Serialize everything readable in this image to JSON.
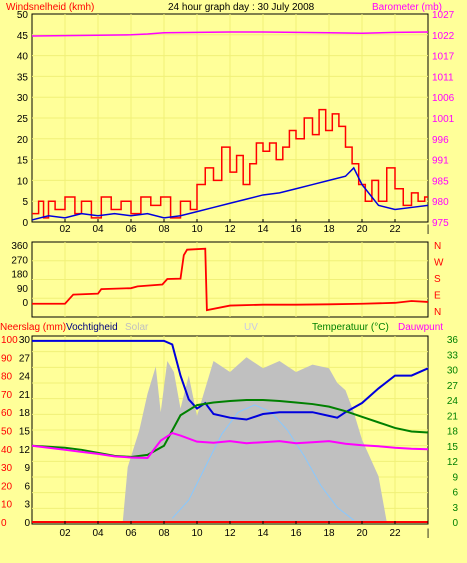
{
  "page": {
    "background": "#ffff99",
    "frame_color": "#000000",
    "grid_color": "#f0f078"
  },
  "chart_data": [
    {
      "id": "wind-pressure",
      "type": "line",
      "title": "24 hour graph day : 30 July 2008",
      "ylabel_left": "Windsnelheid (kmh)",
      "ylabel_right": "Barometer (mb)",
      "left_ticks": [
        "50",
        "45",
        "40",
        "35",
        "30",
        "25",
        "20",
        "15",
        "10",
        "5",
        "0"
      ],
      "right_ticks": [
        "1027",
        "1022",
        "1017",
        "1011",
        "1006",
        "1001",
        "996",
        "991",
        "985",
        "980",
        "975"
      ],
      "ylim_left": [
        0,
        50
      ],
      "ylim_right": [
        975,
        1027
      ],
      "xlim": [
        0,
        24
      ],
      "x_ticks": [
        "02",
        "04",
        "06",
        "08",
        "10",
        "12",
        "14",
        "16",
        "18",
        "20",
        "22",
        "|"
      ],
      "series": [
        {
          "color": "#ff00ff",
          "axis": "right",
          "x": [
            0,
            2,
            4,
            6,
            7,
            8,
            10,
            12,
            14,
            16,
            18,
            20,
            22,
            24
          ],
          "y": [
            1021.5,
            1021.6,
            1021.7,
            1021.8,
            1022.0,
            1022.3,
            1022.4,
            1022.5,
            1022.5,
            1022.4,
            1022.3,
            1022.2,
            1022.4,
            1022.5
          ]
        },
        {
          "color": "#ff0000",
          "axis": "left",
          "step": true,
          "x": [
            0,
            0.4,
            0.7,
            1.0,
            1.4,
            2.0,
            2.6,
            3.0,
            3.6,
            4.2,
            4.8,
            5.4,
            6.0,
            6.6,
            7.2,
            7.8,
            8.4,
            9.0,
            9.6,
            10.0,
            10.5,
            11.0,
            11.5,
            12.0,
            12.4,
            12.8,
            13.2,
            13.6,
            14.0,
            14.4,
            14.8,
            15.2,
            15.6,
            16.0,
            16.5,
            17.0,
            17.4,
            17.8,
            18.2,
            18.6,
            19.0,
            19.4,
            19.8,
            20.2,
            20.6,
            21.0,
            21.5,
            22.0,
            22.5,
            23.0,
            23.4,
            23.8
          ],
          "y": [
            2,
            5,
            1,
            5,
            3,
            6,
            2,
            5,
            1,
            6,
            3,
            5,
            2,
            6,
            4,
            6,
            1,
            5,
            3,
            9,
            13,
            10,
            18,
            12,
            16,
            9,
            14,
            19,
            17,
            19,
            15,
            18,
            22,
            20,
            25,
            21,
            27,
            22,
            26,
            23,
            18,
            14,
            9,
            5,
            10,
            5,
            13,
            8,
            4,
            7,
            5,
            6
          ]
        },
        {
          "color": "#0000dd",
          "axis": "left",
          "x": [
            0,
            1,
            2,
            3,
            4,
            5,
            6,
            7,
            8,
            9,
            10,
            11,
            12,
            13,
            14,
            15,
            16,
            17,
            18,
            19,
            19.5,
            20,
            21,
            22,
            23,
            24
          ],
          "y": [
            0.5,
            1.5,
            1,
            2,
            1.5,
            2,
            1.5,
            2,
            1,
            1.5,
            2.5,
            3.5,
            4.5,
            5.5,
            6.5,
            7,
            8,
            9,
            10,
            11,
            13,
            9,
            4,
            3,
            3.5,
            4
          ]
        }
      ]
    },
    {
      "id": "wind-direction",
      "type": "line",
      "left_ticks": [
        "360",
        "270",
        "180",
        "90",
        "0"
      ],
      "right_ticks": [
        "N",
        "W",
        "S",
        "E",
        "N"
      ],
      "ylim": [
        0,
        360
      ],
      "xlim": [
        0,
        24
      ],
      "series": [
        {
          "color": "#ff0000",
          "x": [
            0,
            2,
            2.5,
            4,
            4.2,
            6,
            6.4,
            7.9,
            8.2,
            9.0,
            9.2,
            9.4,
            10.5,
            10.6,
            12,
            14,
            16,
            18,
            20,
            22,
            23,
            24
          ],
          "y": [
            45,
            45,
            95,
            100,
            125,
            130,
            140,
            150,
            180,
            182,
            310,
            340,
            345,
            10,
            35,
            40,
            40,
            42,
            45,
            50,
            60,
            55
          ]
        }
      ]
    },
    {
      "id": "rain-humidity-solar-uv-temp",
      "type": "area",
      "legend_left": [
        "Neerslag (mm)",
        "Vochtigheid",
        "Solar"
      ],
      "legend_center": "UV",
      "legend_right": [
        "Temperatuur (°C)",
        "Dauwpunt"
      ],
      "left_outer_ticks": [
        "100",
        "90",
        "80",
        "70",
        "60",
        "50",
        "40",
        "30",
        "20",
        "10",
        "0"
      ],
      "left_inner_ticks": [
        "30",
        "27",
        "24",
        "21",
        "18",
        "15",
        "12",
        "9",
        "6",
        "3",
        "0"
      ],
      "right_ticks": [
        "36",
        "33",
        "30",
        "27",
        "24",
        "21",
        "18",
        "15",
        "12",
        "9",
        "6",
        "3",
        "0"
      ],
      "ylim_humidity": [
        0,
        100
      ],
      "ylim_temp": [
        0,
        36
      ],
      "xlim": [
        0,
        24
      ],
      "series": [
        {
          "name": "Solar",
          "color": "#c0c0c0",
          "axis": "humidity",
          "fill": true,
          "x": [
            0,
            5.5,
            5.8,
            6.5,
            7,
            7.5,
            7.8,
            8.2,
            8.6,
            9,
            9.5,
            10,
            11,
            12,
            13,
            14,
            15,
            16,
            17,
            18,
            18.5,
            19,
            19.5,
            20,
            20.5,
            21,
            21.3,
            21.5,
            24
          ],
          "y": [
            0,
            0,
            30,
            50,
            70,
            85,
            60,
            88,
            82,
            62,
            80,
            58,
            88,
            82,
            90,
            84,
            88,
            82,
            86,
            84,
            76,
            72,
            60,
            45,
            35,
            25,
            10,
            0,
            0
          ]
        },
        {
          "name": "UV",
          "color": "#88c8ff",
          "axis": "humidity",
          "x": [
            8.5,
            9.5,
            10.5,
            11.5,
            12.5,
            13.5,
            14.5,
            15.5,
            16.5,
            17.5,
            18.5,
            19.5
          ],
          "y": [
            2,
            12,
            30,
            48,
            60,
            64,
            60,
            50,
            36,
            20,
            8,
            1
          ]
        },
        {
          "name": "Vochtigheid",
          "color": "#0000dd",
          "axis": "humidity",
          "x": [
            0,
            1,
            2,
            3,
            4,
            5,
            6,
            7,
            8,
            8.5,
            9,
            9.5,
            10,
            10.5,
            11,
            12,
            13,
            14,
            15,
            16,
            17,
            18,
            18.5,
            19,
            20,
            21,
            22,
            23,
            24
          ],
          "y": [
            99,
            99,
            99,
            99,
            99,
            99,
            99,
            99,
            99,
            97,
            80,
            67,
            62,
            65,
            59,
            57,
            56,
            59,
            60,
            60,
            60,
            58,
            57,
            60,
            65,
            73,
            80,
            80,
            84
          ]
        },
        {
          "name": "Temperatuur (°C)",
          "color": "#008000",
          "axis": "temp",
          "x": [
            0,
            1,
            2,
            3,
            4,
            5,
            6,
            7,
            8,
            8.5,
            9,
            10,
            11,
            12,
            13,
            14,
            15,
            16,
            17,
            18,
            19,
            20,
            21,
            22,
            23,
            24
          ],
          "y": [
            15,
            14.8,
            14.6,
            14.2,
            13.6,
            13,
            12.8,
            13.2,
            15,
            18,
            21,
            23,
            23.5,
            23.8,
            24,
            24,
            23.8,
            23.5,
            23.2,
            22.7,
            21.8,
            20.7,
            19.6,
            18.5,
            17.8,
            17.6
          ]
        },
        {
          "name": "Dauwpunt",
          "color": "#ff00ff",
          "axis": "temp",
          "x": [
            0,
            1,
            2,
            3,
            4,
            5,
            6,
            7,
            7.8,
            8.5,
            9,
            10,
            11,
            12,
            13,
            14,
            15,
            16,
            17,
            18,
            19,
            20,
            21,
            22,
            23,
            24
          ],
          "y": [
            15,
            14.6,
            14.2,
            13.8,
            13.4,
            12.9,
            12.7,
            12.6,
            16,
            17.5,
            17,
            15.8,
            15.6,
            15.9,
            15.5,
            15.7,
            15.9,
            15.5,
            15.7,
            15.9,
            15.4,
            15.1,
            14.9,
            14.6,
            14.4,
            14.3
          ]
        },
        {
          "name": "Neerslag (mm)",
          "color": "#ff0000",
          "axis": "humidity",
          "x": [
            0,
            24
          ],
          "y": [
            0,
            0
          ]
        }
      ]
    }
  ]
}
